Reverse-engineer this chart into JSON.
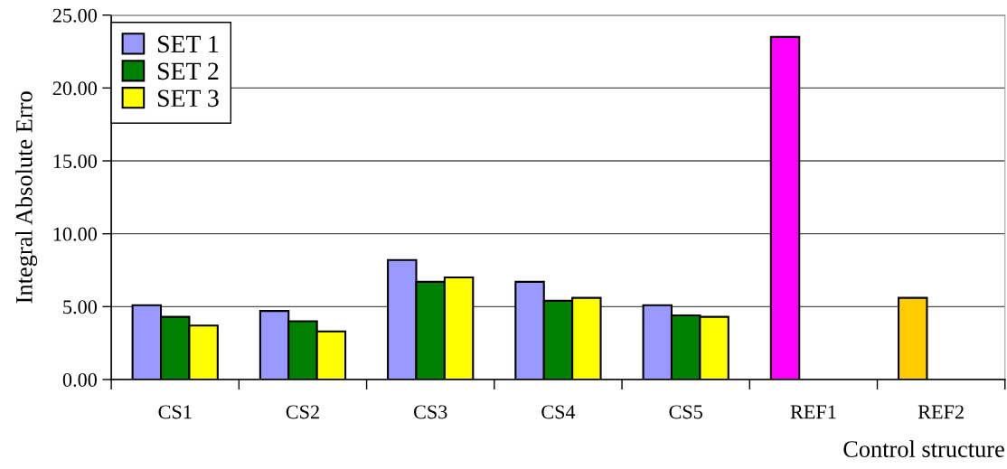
{
  "chart_data": {
    "type": "bar",
    "ylabel": "Integral Absolute Erro",
    "xlabel": "Control structure",
    "categories": [
      "CS1",
      "CS2",
      "CS3",
      "CS4",
      "CS5",
      "REF1",
      "REF2"
    ],
    "series": [
      {
        "name": "SET 1",
        "color": "#9999ff",
        "colors": [
          "#9999ff",
          "#9999ff",
          "#9999ff",
          "#9999ff",
          "#9999ff",
          "#ff00ff",
          "#ffcc00"
        ],
        "values": [
          5.1,
          4.7,
          8.2,
          6.7,
          5.1,
          23.5,
          5.6
        ]
      },
      {
        "name": "SET 2",
        "color": "#008000",
        "values": [
          4.3,
          4.0,
          6.7,
          5.4,
          4.4,
          null,
          null
        ]
      },
      {
        "name": "SET 3",
        "color": "#ffff00",
        "values": [
          3.7,
          3.3,
          7.0,
          5.6,
          4.3,
          null,
          null
        ]
      }
    ],
    "ylim": [
      0,
      25
    ],
    "yticks": [
      {
        "value": 0,
        "label": "0.00"
      },
      {
        "value": 5,
        "label": "5.00"
      },
      {
        "value": 10,
        "label": "10.00"
      },
      {
        "value": 15,
        "label": "15.00"
      },
      {
        "value": 20,
        "label": "20.00"
      },
      {
        "value": 25,
        "label": "25.00"
      }
    ],
    "grid": "y",
    "legend": "top left"
  }
}
